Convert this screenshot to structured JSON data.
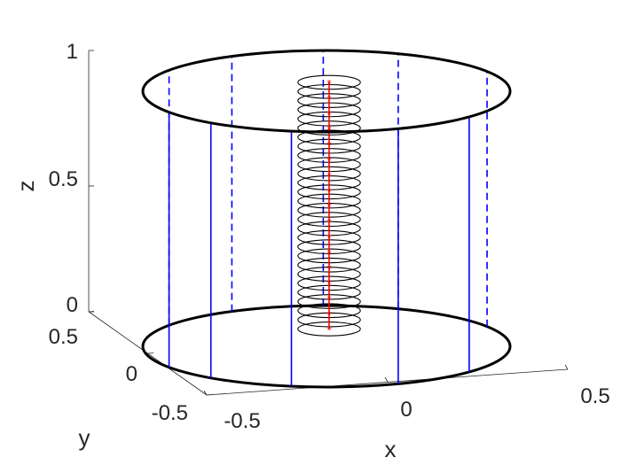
{
  "chart_data": {
    "type": "3d-line",
    "title": "",
    "xlabel": "x",
    "ylabel": "y",
    "zlabel": "z",
    "xlim": [
      -0.5,
      0.5
    ],
    "ylim": [
      -0.5,
      0.5
    ],
    "zlim": [
      0,
      1
    ],
    "x_ticks": [
      "-0.5",
      "0",
      "0.5"
    ],
    "y_ticks": [
      "-0.5",
      "0",
      "0.5"
    ],
    "z_ticks": [
      "0",
      "0.5",
      "1"
    ],
    "grid": false,
    "cylinder": {
      "radius": 0.5,
      "z_bottom": 0,
      "z_top": 1,
      "rim_color": "#000000"
    },
    "vertical_lines": {
      "color": "#0000ff",
      "solid_angles_deg": [
        211,
        231,
        259,
        293,
        321
      ],
      "dashed_angles_deg": [
        149,
        121,
        91,
        67,
        29
      ]
    },
    "coil": {
      "color": "#000000",
      "center_xy": [
        0,
        0
      ],
      "radius": 0.085,
      "turns": 28,
      "z_start": 0.04,
      "z_end": 1.0
    },
    "axis_markers": {
      "color": "#ff0000",
      "marker": "*",
      "z_values": [
        0.04,
        0.1,
        0.16,
        0.22,
        0.28,
        0.34,
        0.4,
        0.46,
        0.52,
        0.58,
        0.64,
        0.7,
        0.76,
        0.82,
        0.88,
        0.94,
        1.0
      ]
    }
  }
}
